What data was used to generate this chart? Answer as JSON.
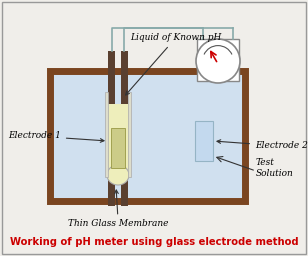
{
  "title": "Working of pH meter using glass electrode method",
  "title_color": "#cc0000",
  "title_fontsize": 7.2,
  "bg_color": "#f0eeea",
  "border_color": "#999999",
  "labels": {
    "liquid": "Liquid of Known pH",
    "electrode1": "Electrode 1",
    "electrode2": "Electrode 2",
    "membrane": "Thin Glass Membrane",
    "test_solution": "Test\nSolution"
  },
  "colors": {
    "tank_border": "#7a4520",
    "tank_fill": "#cddff0",
    "electrode_dark": "#5a4030",
    "electrode_inner_fill": "#eeeebb",
    "electrode2_fill": "#c0d8ee",
    "meter_bg": "white",
    "meter_edge": "#888888",
    "meter_needle": "#cc0000",
    "wire_color": "#88aaaa",
    "label_color": "#000000",
    "arrow_color": "#333333"
  }
}
